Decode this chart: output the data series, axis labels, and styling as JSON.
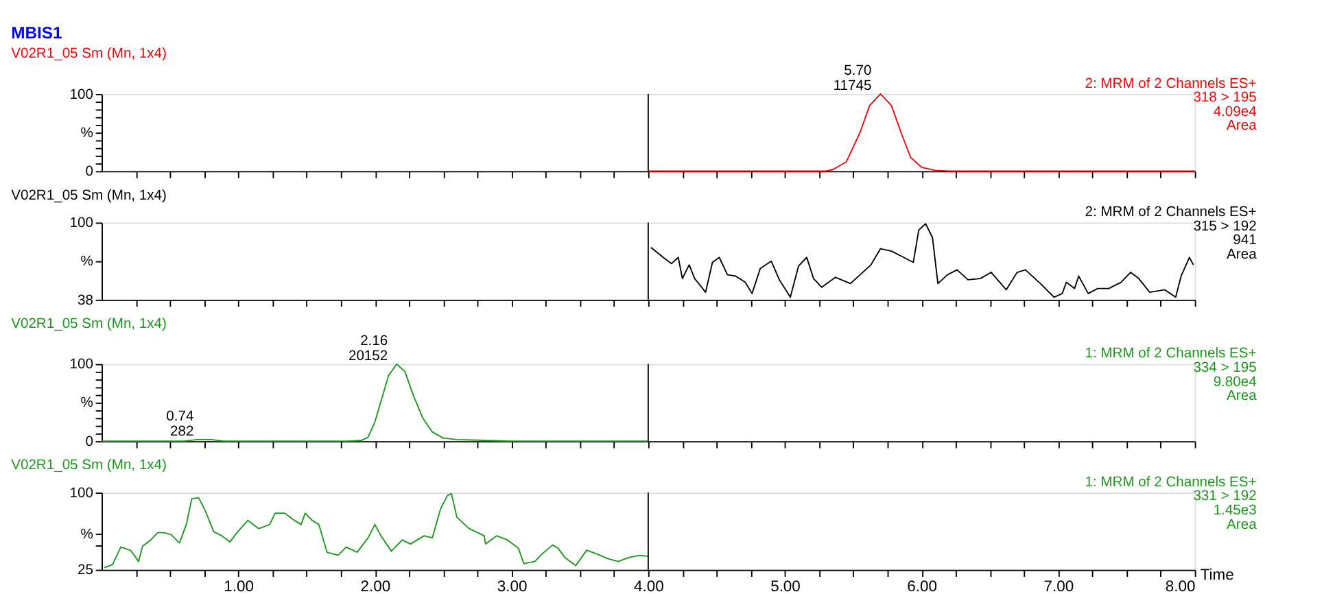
{
  "chart_data": [
    {
      "type": "line",
      "title": "MBIS1",
      "subtitle": "V02R1_05 Sm (Mn, 1x4)",
      "xlim": [
        0,
        8
      ],
      "ylim": [
        0,
        100
      ],
      "tick_labels": "y",
      "xticks": [
        {
          "value": 0.25,
          "label": null
        },
        {
          "value": 0.5,
          "label": null
        },
        {
          "value": 0.75,
          "label": null
        },
        {
          "value": 1,
          "label": null
        },
        {
          "value": 1.25,
          "label": null
        },
        {
          "value": 1.5,
          "label": null
        },
        {
          "value": 1.75,
          "label": null
        },
        {
          "value": 2,
          "label": null
        },
        {
          "value": 2.25,
          "label": null
        },
        {
          "value": 2.5,
          "label": null
        },
        {
          "value": 2.75,
          "label": null
        },
        {
          "value": 3,
          "label": null
        },
        {
          "value": 3.25,
          "label": null
        },
        {
          "value": 3.5,
          "label": null
        },
        {
          "value": 3.75,
          "label": null
        },
        {
          "value": 4,
          "label": null
        },
        {
          "value": 4.25,
          "label": null
        },
        {
          "value": 4.5,
          "label": null
        },
        {
          "value": 4.75,
          "label": null
        },
        {
          "value": 5,
          "label": null
        },
        {
          "value": 5.25,
          "label": null
        },
        {
          "value": 5.5,
          "label": null
        },
        {
          "value": 5.75,
          "label": null
        },
        {
          "value": 6,
          "label": null
        },
        {
          "value": 6.25,
          "label": null
        },
        {
          "value": 6.5,
          "label": null
        },
        {
          "value": 6.75,
          "label": null
        },
        {
          "value": 7,
          "label": null
        },
        {
          "value": 7.25,
          "label": null
        },
        {
          "value": 7.5,
          "label": null
        },
        {
          "value": 7.75,
          "label": null
        },
        {
          "value": 8,
          "label": null
        }
      ],
      "yticks": [
        0,
        {
          "value": 10,
          "label": null
        },
        {
          "value": 20,
          "label": null
        },
        {
          "value": 30,
          "label": null
        },
        {
          "value": 40,
          "label": null
        },
        {
          "value": 50,
          "label": "%"
        },
        {
          "value": 60,
          "label": null
        },
        {
          "value": 70,
          "label": null
        },
        {
          "value": 80,
          "label": null
        },
        {
          "value": 90,
          "label": null
        },
        100
      ],
      "ref_lines": [
        {
          "axis": "x",
          "value": 4,
          "color": "#000000"
        }
      ],
      "annotations": [
        "2: MRM of 2 Channels ES+",
        "318 > 195",
        "4.09e4",
        "Area",
        {
          "text": "5.70\n11745",
          "x": 5.7,
          "y": 100
        }
      ],
      "series": [
        {
          "color": "#ff0000",
          "x": [
            4.0,
            5.3,
            5.35,
            5.45,
            5.55,
            5.62,
            5.7,
            5.78,
            5.85,
            5.92,
            6.0,
            6.1,
            6.2,
            8.0
          ],
          "values": [
            0,
            0,
            2,
            12,
            50,
            85,
            100,
            85,
            50,
            18,
            5,
            1,
            0,
            0
          ]
        }
      ]
    },
    {
      "type": "line",
      "subtitle": "V02R1_05 Sm (Mn, 1x4)",
      "xlim": [
        0,
        8
      ],
      "ylim": [
        38,
        100
      ],
      "tick_labels": "y",
      "xticks": [
        {
          "value": 0.25,
          "label": null
        },
        {
          "value": 0.5,
          "label": null
        },
        {
          "value": 0.75,
          "label": null
        },
        {
          "value": 1,
          "label": null
        },
        {
          "value": 1.25,
          "label": null
        },
        {
          "value": 1.5,
          "label": null
        },
        {
          "value": 1.75,
          "label": null
        },
        {
          "value": 2,
          "label": null
        },
        {
          "value": 2.25,
          "label": null
        },
        {
          "value": 2.5,
          "label": null
        },
        {
          "value": 2.75,
          "label": null
        },
        {
          "value": 3,
          "label": null
        },
        {
          "value": 3.25,
          "label": null
        },
        {
          "value": 3.5,
          "label": null
        },
        {
          "value": 3.75,
          "label": null
        },
        {
          "value": 4,
          "label": null
        },
        {
          "value": 4.25,
          "label": null
        },
        {
          "value": 4.5,
          "label": null
        },
        {
          "value": 4.75,
          "label": null
        },
        {
          "value": 5,
          "label": null
        },
        {
          "value": 5.25,
          "label": null
        },
        {
          "value": 5.5,
          "label": null
        },
        {
          "value": 5.75,
          "label": null
        },
        {
          "value": 6,
          "label": null
        },
        {
          "value": 6.25,
          "label": null
        },
        {
          "value": 6.5,
          "label": null
        },
        {
          "value": 6.75,
          "label": null
        },
        {
          "value": 7,
          "label": null
        },
        {
          "value": 7.25,
          "label": null
        },
        {
          "value": 7.5,
          "label": null
        },
        {
          "value": 7.75,
          "label": null
        },
        {
          "value": 8,
          "label": null
        }
      ],
      "yticks": [
        38,
        {
          "value": 69,
          "label": "%"
        },
        100
      ],
      "ref_lines": [
        {
          "axis": "x",
          "value": 4,
          "color": "#000000"
        }
      ],
      "annotations": [
        "2: MRM of 2 Channels ES+",
        "315 > 192",
        "941",
        "Area"
      ],
      "series": [
        {
          "color": "#000000",
          "x": [
            4.02,
            4.11,
            4.17,
            4.22,
            4.25,
            4.3,
            4.34,
            4.42,
            4.47,
            4.52,
            4.58,
            4.64,
            4.71,
            4.76,
            4.82,
            4.9,
            4.96,
            5.04,
            5.1,
            5.16,
            5.21,
            5.27,
            5.37,
            5.48,
            5.56,
            5.63,
            5.7,
            5.78,
            5.87,
            5.94,
            5.98,
            6.03,
            6.08,
            6.12,
            6.19,
            6.26,
            6.34,
            6.43,
            6.51,
            6.62,
            6.7,
            6.76,
            6.87,
            6.97,
            7.03,
            7.06,
            7.12,
            7.15,
            7.22,
            7.29,
            7.37,
            7.46,
            7.53,
            7.59,
            7.67,
            7.78,
            7.86,
            7.9,
            7.96,
            7.99
          ],
          "values": [
            80,
            72,
            67,
            72,
            55,
            66,
            55,
            44,
            68,
            72,
            58,
            57,
            52,
            43,
            63,
            69,
            54,
            40,
            65,
            72,
            55,
            48,
            56,
            51,
            59,
            66,
            79,
            77,
            72,
            68,
            94,
            99,
            88,
            51,
            58,
            62,
            54,
            55,
            60,
            46,
            60,
            62,
            51,
            40,
            43,
            52,
            47,
            57,
            43,
            47,
            47,
            52,
            60,
            55,
            44,
            46,
            40,
            57,
            72,
            66
          ]
        }
      ]
    },
    {
      "type": "line",
      "subtitle": "V02R1_05 Sm (Mn, 1x4)",
      "xlim": [
        0,
        8
      ],
      "ylim": [
        0,
        100
      ],
      "tick_labels": "y",
      "xticks": [
        {
          "value": 0.25,
          "label": null
        },
        {
          "value": 0.5,
          "label": null
        },
        {
          "value": 0.75,
          "label": null
        },
        {
          "value": 1,
          "label": null
        },
        {
          "value": 1.25,
          "label": null
        },
        {
          "value": 1.5,
          "label": null
        },
        {
          "value": 1.75,
          "label": null
        },
        {
          "value": 2,
          "label": null
        },
        {
          "value": 2.25,
          "label": null
        },
        {
          "value": 2.5,
          "label": null
        },
        {
          "value": 2.75,
          "label": null
        },
        {
          "value": 3,
          "label": null
        },
        {
          "value": 3.25,
          "label": null
        },
        {
          "value": 3.5,
          "label": null
        },
        {
          "value": 3.75,
          "label": null
        },
        {
          "value": 4,
          "label": null
        },
        {
          "value": 4.25,
          "label": null
        },
        {
          "value": 4.5,
          "label": null
        },
        {
          "value": 4.75,
          "label": null
        },
        {
          "value": 5,
          "label": null
        },
        {
          "value": 5.25,
          "label": null
        },
        {
          "value": 5.5,
          "label": null
        },
        {
          "value": 5.75,
          "label": null
        },
        {
          "value": 6,
          "label": null
        },
        {
          "value": 6.25,
          "label": null
        },
        {
          "value": 6.5,
          "label": null
        },
        {
          "value": 6.75,
          "label": null
        },
        {
          "value": 7,
          "label": null
        },
        {
          "value": 7.25,
          "label": null
        },
        {
          "value": 7.5,
          "label": null
        },
        {
          "value": 7.75,
          "label": null
        },
        {
          "value": 8,
          "label": null
        }
      ],
      "yticks": [
        0,
        {
          "value": 10,
          "label": null
        },
        {
          "value": 20,
          "label": null
        },
        {
          "value": 30,
          "label": null
        },
        {
          "value": 40,
          "label": null
        },
        {
          "value": 50,
          "label": "%"
        },
        {
          "value": 60,
          "label": null
        },
        {
          "value": 70,
          "label": null
        },
        {
          "value": 80,
          "label": null
        },
        {
          "value": 90,
          "label": null
        },
        100
      ],
      "ref_lines": [
        {
          "axis": "x",
          "value": 4,
          "color": "#000000"
        }
      ],
      "annotations": [
        "1: MRM of 2 Channels ES+",
        "334 > 195",
        "9.80e4",
        "Area",
        {
          "text": "0.74\n282",
          "x": 0.74,
          "y": 2
        },
        {
          "text": "2.16\n20152",
          "x": 2.16,
          "y": 100
        }
      ],
      "series": [
        {
          "color": "#1a9a1a",
          "x": [
            0.0,
            0.6,
            0.7,
            0.8,
            0.9,
            1.8,
            1.9,
            1.95,
            2.0,
            2.05,
            2.1,
            2.16,
            2.22,
            2.28,
            2.35,
            2.42,
            2.5,
            2.6,
            2.8,
            3.0,
            4.0
          ],
          "values": [
            0,
            0,
            2,
            2,
            0,
            0,
            1,
            5,
            25,
            55,
            85,
            100,
            90,
            60,
            30,
            12,
            4,
            2,
            1,
            0,
            0
          ]
        }
      ]
    },
    {
      "type": "line",
      "subtitle": "V02R1_05 Sm (Mn, 1x4)",
      "xlim": [
        0,
        8
      ],
      "ylim": [
        25,
        100
      ],
      "xlabel": "Time",
      "xticks": [
        {
          "value": 0.25,
          "label": null
        },
        {
          "value": 0.5,
          "label": null
        },
        {
          "value": 0.75,
          "label": null
        },
        {
          "value": 1,
          "label": "1.00"
        },
        {
          "value": 1.25,
          "label": null
        },
        {
          "value": 1.5,
          "label": null
        },
        {
          "value": 1.75,
          "label": null
        },
        {
          "value": 2,
          "label": "2.00"
        },
        {
          "value": 2.25,
          "label": null
        },
        {
          "value": 2.5,
          "label": null
        },
        {
          "value": 2.75,
          "label": null
        },
        {
          "value": 3,
          "label": "3.00"
        },
        {
          "value": 3.25,
          "label": null
        },
        {
          "value": 3.5,
          "label": null
        },
        {
          "value": 3.75,
          "label": null
        },
        {
          "value": 4,
          "label": "4.00"
        },
        {
          "value": 4.25,
          "label": null
        },
        {
          "value": 4.5,
          "label": null
        },
        {
          "value": 4.75,
          "label": null
        },
        {
          "value": 5,
          "label": "5.00"
        },
        {
          "value": 5.25,
          "label": null
        },
        {
          "value": 5.5,
          "label": null
        },
        {
          "value": 5.75,
          "label": null
        },
        {
          "value": 6,
          "label": "6.00"
        },
        {
          "value": 6.25,
          "label": null
        },
        {
          "value": 6.5,
          "label": null
        },
        {
          "value": 6.75,
          "label": null
        },
        {
          "value": 7,
          "label": "7.00"
        },
        {
          "value": 7.25,
          "label": null
        },
        {
          "value": 7.5,
          "label": null
        },
        {
          "value": 7.75,
          "label": null
        },
        {
          "value": 8,
          "label": "8.00"
        }
      ],
      "yticks": [
        25,
        {
          "value": 49,
          "label": null
        },
        {
          "value": 60,
          "label": "%"
        },
        100
      ],
      "ref_lines": [
        {
          "axis": "x",
          "value": 4,
          "color": "#000000"
        }
      ],
      "annotations": [
        "1: MRM of 2 Channels ES+",
        "331 > 192",
        "1.45e3",
        "Area"
      ],
      "series": [
        {
          "color": "#1a9a1a",
          "x": [
            0.02,
            0.08,
            0.14,
            0.21,
            0.24,
            0.27,
            0.3,
            0.36,
            0.41,
            0.46,
            0.51,
            0.57,
            0.62,
            0.66,
            0.71,
            0.76,
            0.82,
            0.88,
            0.94,
            0.99,
            1.07,
            1.15,
            1.23,
            1.27,
            1.34,
            1.41,
            1.46,
            1.49,
            1.54,
            1.59,
            1.65,
            1.73,
            1.79,
            1.87,
            1.95,
            2.0,
            2.04,
            2.12,
            2.2,
            2.26,
            2.36,
            2.42,
            2.48,
            2.53,
            2.56,
            2.6,
            2.69,
            2.8,
            2.81,
            2.89,
            2.97,
            3.05,
            3.09,
            3.17,
            3.22,
            3.3,
            3.34,
            3.39,
            3.47,
            3.55,
            3.63,
            3.7,
            3.78,
            3.86,
            3.94,
            4.0
          ],
          "values": [
            27,
            30,
            47,
            44,
            39,
            33,
            48,
            54,
            61,
            61,
            59,
            51,
            69,
            94,
            95,
            82,
            62,
            58,
            52,
            61,
            73,
            65,
            69,
            80,
            80,
            73,
            69,
            80,
            73,
            69,
            42,
            39,
            47,
            42,
            56,
            69,
            59,
            43,
            54,
            50,
            58,
            56,
            84,
            97,
            99,
            76,
            65,
            58,
            50,
            58,
            54,
            46,
            31,
            33,
            40,
            49,
            46,
            37,
            29,
            44,
            40,
            36,
            33,
            37,
            39,
            38
          ]
        }
      ]
    }
  ]
}
